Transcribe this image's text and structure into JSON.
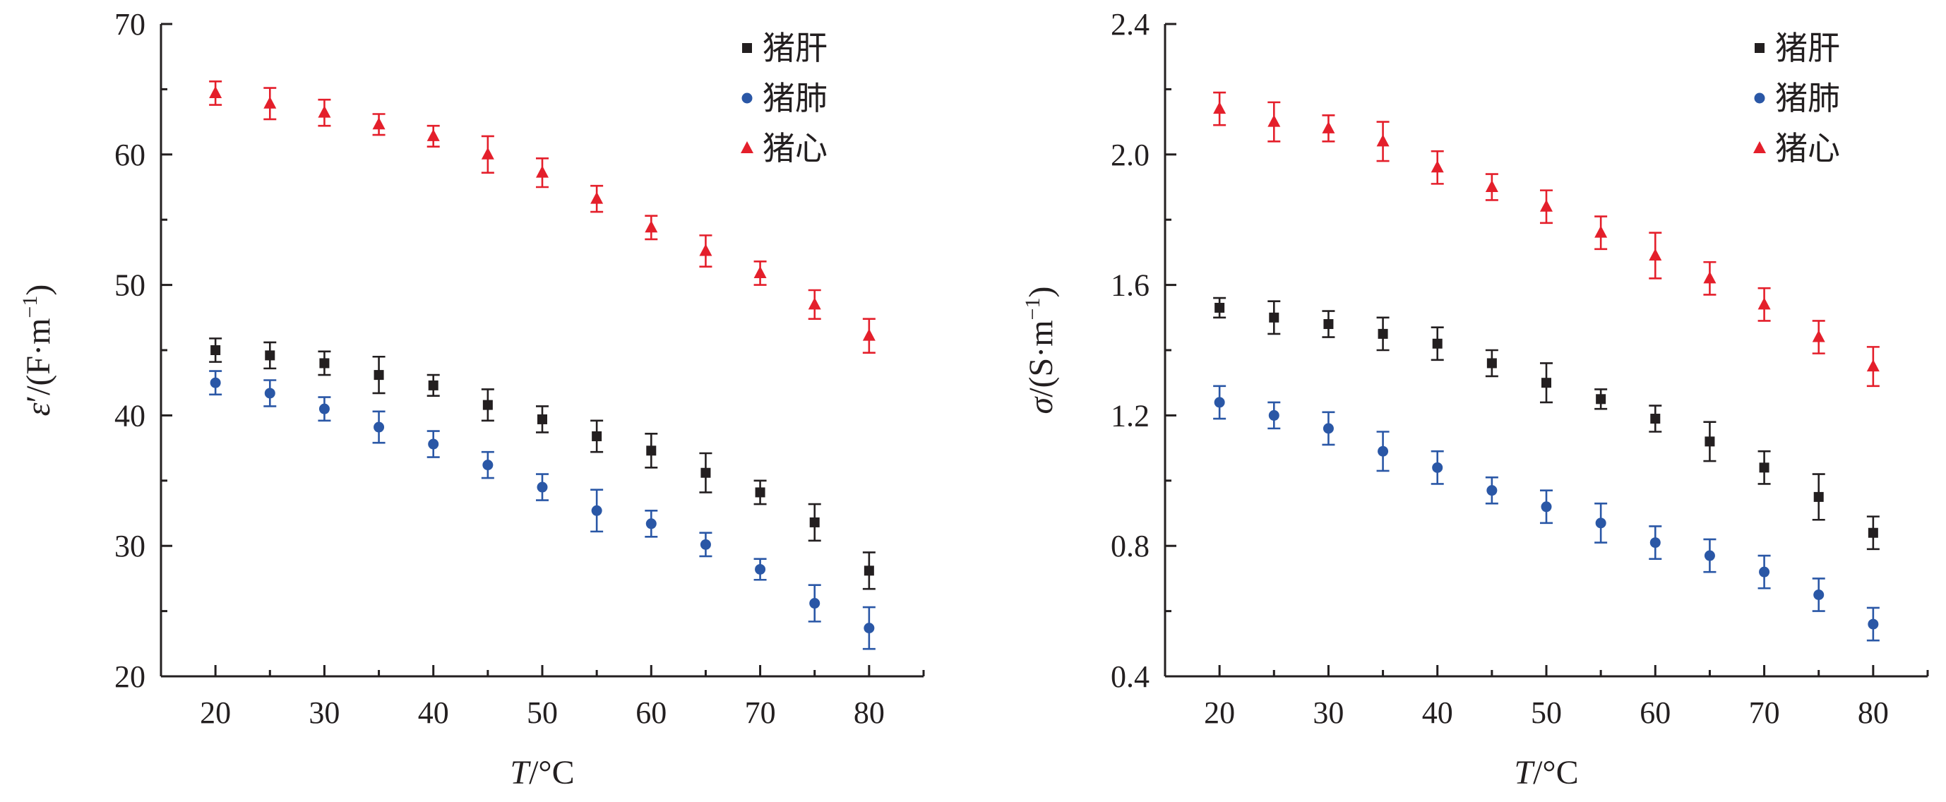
{
  "chart_data": [
    {
      "type": "scatter",
      "title": "",
      "xlabel_italic": "T",
      "xlabel_rest": "/°C",
      "ylabel_italic": "ε",
      "ylabel_rest": "′/(F·m",
      "ylabel_sup": "−1",
      "ylabel_close": ")",
      "xlim": [
        15,
        85
      ],
      "ylim": [
        20,
        70
      ],
      "xticks": [
        20,
        30,
        40,
        50,
        60,
        70,
        80
      ],
      "xtick_labels": [
        "20",
        "30",
        "40",
        "50",
        "60",
        "70",
        "80"
      ],
      "yticks": [
        20,
        30,
        40,
        50,
        60,
        70
      ],
      "ytick_labels": [
        "20",
        "30",
        "40",
        "50",
        "60",
        "70"
      ],
      "grid": false,
      "legend_position": "top-right",
      "x": [
        20,
        25,
        30,
        35,
        40,
        45,
        50,
        55,
        60,
        65,
        70,
        75,
        80
      ],
      "series": [
        {
          "name": "猪肝",
          "color": "#231f20",
          "marker": "square",
          "values": [
            45.0,
            44.6,
            44.0,
            43.1,
            42.3,
            40.8,
            39.7,
            38.4,
            37.3,
            35.6,
            34.1,
            31.8,
            28.1
          ],
          "errors": [
            0.9,
            1.0,
            0.9,
            1.4,
            0.8,
            1.2,
            1.0,
            1.2,
            1.3,
            1.5,
            0.9,
            1.4,
            1.4
          ]
        },
        {
          "name": "猪肺",
          "color": "#2a57a6",
          "marker": "circle",
          "values": [
            42.5,
            41.7,
            40.5,
            39.1,
            37.8,
            36.2,
            34.5,
            32.7,
            31.7,
            30.1,
            28.2,
            25.6,
            23.7
          ],
          "errors": [
            0.9,
            1.0,
            0.9,
            1.2,
            1.0,
            1.0,
            1.0,
            1.6,
            1.0,
            0.9,
            0.8,
            1.4,
            1.6
          ]
        },
        {
          "name": "猪心",
          "color": "#e41f2b",
          "marker": "triangle",
          "values": [
            64.7,
            63.9,
            63.2,
            62.3,
            61.4,
            60.0,
            58.6,
            56.6,
            54.4,
            52.6,
            50.9,
            48.5,
            46.1
          ],
          "errors": [
            0.9,
            1.2,
            1.0,
            0.8,
            0.8,
            1.4,
            1.1,
            1.0,
            0.9,
            1.2,
            0.9,
            1.1,
            1.3
          ]
        }
      ]
    },
    {
      "type": "scatter",
      "title": "",
      "xlabel_italic": "T",
      "xlabel_rest": "/°C",
      "ylabel_italic": "σ",
      "ylabel_rest": "/(S·m",
      "ylabel_sup": "−1",
      "ylabel_close": ")",
      "xlim": [
        15,
        85
      ],
      "ylim": [
        0.4,
        2.4
      ],
      "xticks": [
        20,
        30,
        40,
        50,
        60,
        70,
        80
      ],
      "xtick_labels": [
        "20",
        "30",
        "40",
        "50",
        "60",
        "70",
        "80"
      ],
      "yticks": [
        0.4,
        0.8,
        1.2,
        1.6,
        2.0,
        2.4
      ],
      "ytick_labels": [
        "0.4",
        "0.8",
        "1.2",
        "1.6",
        "2.0",
        "2.4"
      ],
      "grid": false,
      "legend_position": "top-right",
      "x": [
        20,
        25,
        30,
        35,
        40,
        45,
        50,
        55,
        60,
        65,
        70,
        75,
        80
      ],
      "series": [
        {
          "name": "猪肝",
          "color": "#231f20",
          "marker": "square",
          "values": [
            1.53,
            1.5,
            1.48,
            1.45,
            1.42,
            1.36,
            1.3,
            1.25,
            1.19,
            1.12,
            1.04,
            0.95,
            0.84
          ],
          "errors": [
            0.03,
            0.05,
            0.04,
            0.05,
            0.05,
            0.04,
            0.06,
            0.03,
            0.04,
            0.06,
            0.05,
            0.07,
            0.05
          ]
        },
        {
          "name": "猪肺",
          "color": "#2a57a6",
          "marker": "circle",
          "values": [
            1.24,
            1.2,
            1.16,
            1.09,
            1.04,
            0.97,
            0.92,
            0.87,
            0.81,
            0.77,
            0.72,
            0.65,
            0.56
          ],
          "errors": [
            0.05,
            0.04,
            0.05,
            0.06,
            0.05,
            0.04,
            0.05,
            0.06,
            0.05,
            0.05,
            0.05,
            0.05,
            0.05
          ]
        },
        {
          "name": "猪心",
          "color": "#e41f2b",
          "marker": "triangle",
          "values": [
            2.14,
            2.1,
            2.08,
            2.04,
            1.96,
            1.9,
            1.84,
            1.76,
            1.69,
            1.62,
            1.54,
            1.44,
            1.35
          ],
          "errors": [
            0.05,
            0.06,
            0.04,
            0.06,
            0.05,
            0.04,
            0.05,
            0.05,
            0.07,
            0.05,
            0.05,
            0.05,
            0.06
          ]
        }
      ]
    }
  ]
}
